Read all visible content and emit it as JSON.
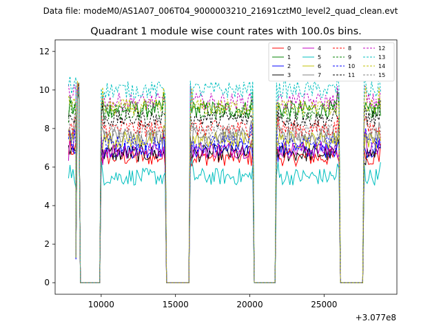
{
  "header": {
    "data_file_label": "Data file: modeM0/AS1A07_006T04_9000003210_21691cztM0_level2_quad_clean.evt"
  },
  "chart_data": {
    "type": "line",
    "title": "Quadrant 1 module wise count rates with 100.0s bins.",
    "xlabel": "",
    "ylabel": "",
    "x_offset_label": "+3.077e8",
    "xlim": [
      6900,
      29900
    ],
    "ylim": [
      -0.6,
      12.6
    ],
    "x_ticks": [
      {
        "value": 10000,
        "label": "10000"
      },
      {
        "value": 15000,
        "label": "15000"
      },
      {
        "value": 20000,
        "label": "20000"
      },
      {
        "value": 25000,
        "label": "25000"
      }
    ],
    "y_ticks": [
      {
        "value": 0,
        "label": "0"
      },
      {
        "value": 2,
        "label": "2"
      },
      {
        "value": 4,
        "label": "4"
      },
      {
        "value": 6,
        "label": "6"
      },
      {
        "value": 8,
        "label": "8"
      },
      {
        "value": 10,
        "label": "10"
      },
      {
        "value": 12,
        "label": "12"
      }
    ],
    "grid": false,
    "legend_position": "top-right",
    "segments": [
      {
        "start": 7800,
        "end": 8300,
        "state": "on"
      },
      {
        "start": 8300,
        "end": 8500,
        "state": "spike"
      },
      {
        "start": 8600,
        "end": 9900,
        "state": "off"
      },
      {
        "start": 10000,
        "end": 14300,
        "state": "on"
      },
      {
        "start": 14400,
        "end": 15900,
        "state": "off"
      },
      {
        "start": 16000,
        "end": 20200,
        "state": "on"
      },
      {
        "start": 20300,
        "end": 21700,
        "state": "off"
      },
      {
        "start": 21800,
        "end": 26000,
        "state": "on"
      },
      {
        "start": 26100,
        "end": 27600,
        "state": "off"
      },
      {
        "start": 27700,
        "end": 28800,
        "state": "on"
      }
    ],
    "series": [
      {
        "name": "0",
        "color": "#ff0000",
        "dashed": false,
        "mean_rate": 6.5
      },
      {
        "name": "1",
        "color": "#008000",
        "dashed": false,
        "mean_rate": 9.0
      },
      {
        "name": "2",
        "color": "#0000ff",
        "dashed": false,
        "mean_rate": 6.9
      },
      {
        "name": "3",
        "color": "#000000",
        "dashed": false,
        "mean_rate": 6.7
      },
      {
        "name": "4",
        "color": "#c000c0",
        "dashed": false,
        "mean_rate": 6.9
      },
      {
        "name": "5",
        "color": "#00bfbf",
        "dashed": false,
        "mean_rate": 5.5
      },
      {
        "name": "6",
        "color": "#bfbf00",
        "dashed": false,
        "mean_rate": 7.4
      },
      {
        "name": "7",
        "color": "#808080",
        "dashed": false,
        "mean_rate": 7.6
      },
      {
        "name": "8",
        "color": "#ff0000",
        "dashed": true,
        "mean_rate": 8.0
      },
      {
        "name": "9",
        "color": "#008000",
        "dashed": true,
        "mean_rate": 8.9
      },
      {
        "name": "10",
        "color": "#0000ff",
        "dashed": true,
        "mean_rate": 7.2
      },
      {
        "name": "11",
        "color": "#000000",
        "dashed": true,
        "mean_rate": 8.5
      },
      {
        "name": "12",
        "color": "#c000c0",
        "dashed": true,
        "mean_rate": 9.4
      },
      {
        "name": "13",
        "color": "#00bfbf",
        "dashed": true,
        "mean_rate": 10.0
      },
      {
        "name": "14",
        "color": "#bfbf00",
        "dashed": true,
        "mean_rate": 9.1
      },
      {
        "name": "15",
        "color": "#808080",
        "dashed": true,
        "mean_rate": 7.8
      }
    ]
  }
}
